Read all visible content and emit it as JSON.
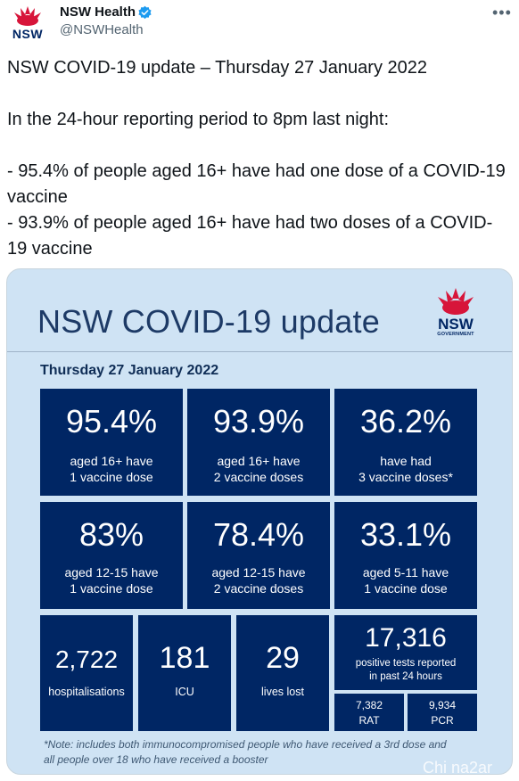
{
  "author": {
    "display_name": "NSW Health",
    "handle": "@NSWHealth",
    "avatar_text": "NSW"
  },
  "tweet": {
    "line1": "NSW COVID-19 update – Thursday 27 January 2022",
    "line2": "In the 24-hour reporting period to 8pm last night:",
    "line3": "- 95.4% of people aged 16+ have had one dose of a COVID-19 vaccine",
    "line4": "- 93.9% of people aged 16+ have had two doses of a COVID-19 vaccine"
  },
  "card": {
    "title": "NSW COVID-19 update",
    "logo_text": "NSW",
    "logo_subtext": "GOVERNMENT",
    "date": "Thursday 27 January 2022",
    "stats": [
      {
        "value": "95.4%",
        "label1": "aged 16+ have",
        "label2": "1 vaccine dose"
      },
      {
        "value": "93.9%",
        "label1": "aged 16+ have",
        "label2": "2 vaccine doses"
      },
      {
        "value": "36.2%",
        "label1": "have had",
        "label2": "3 vaccine doses*"
      },
      {
        "value": "83%",
        "label1": "aged 12-15 have",
        "label2": "1 vaccine dose"
      },
      {
        "value": "78.4%",
        "label1": "aged 12-15 have",
        "label2": "2 vaccine doses"
      },
      {
        "value": "33.1%",
        "label1": "aged 5-11 have",
        "label2": "1 vaccine dose"
      }
    ],
    "hospitalisations": {
      "value": "2,722",
      "label": "hospitalisations"
    },
    "icu": {
      "value": "181",
      "label": "ICU"
    },
    "lives_lost": {
      "value": "29",
      "label": "lives lost"
    },
    "positive_tests": {
      "value": "17,316",
      "label1": "positive tests reported",
      "label2": "in past 24 hours"
    },
    "rat": {
      "value": "7,382",
      "label": "RAT"
    },
    "pcr": {
      "value": "9,934",
      "label": "PCR"
    },
    "note_line1": "*Note: includes both immunocompromised people who have received a 3rd dose and",
    "note_line2": "all people over 18 who have received a booster"
  },
  "watermark": "Chi na2ar",
  "colors": {
    "tile_navy": "#002664",
    "card_background": "#cfe3f4",
    "waratah_red": "#d7153a",
    "verified_blue": "#1d9bf0"
  },
  "icons": [
    "waratah-logo-icon",
    "verified-badge-icon",
    "more-options-icon"
  ]
}
